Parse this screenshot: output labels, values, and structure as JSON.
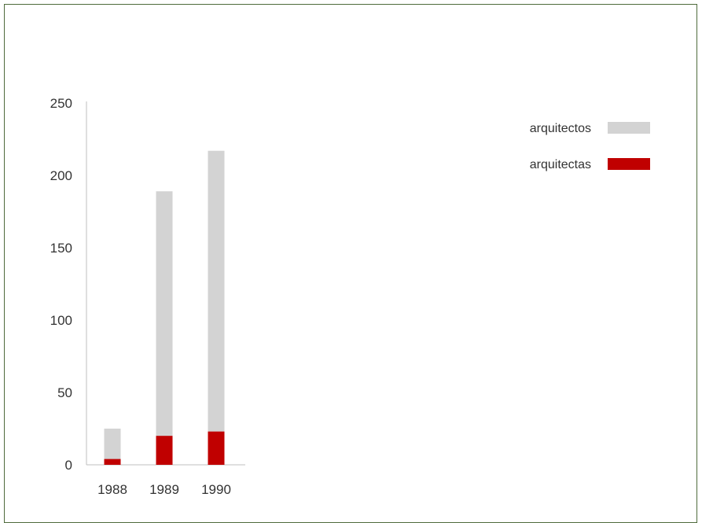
{
  "chart_data": {
    "type": "bar",
    "stacked": false,
    "overlapping": true,
    "categories": [
      "1988",
      "1989",
      "1990"
    ],
    "series": [
      {
        "name": "arquitectos",
        "values": [
          25,
          189,
          217
        ],
        "color": "#d3d3d3"
      },
      {
        "name": "arquitectas",
        "values": [
          4,
          20,
          23
        ],
        "color": "#c00000"
      }
    ],
    "ylim": [
      0,
      250
    ],
    "yticks": [
      0,
      50,
      100,
      150,
      200,
      250
    ],
    "grid": false,
    "legend_position": "top-right"
  }
}
